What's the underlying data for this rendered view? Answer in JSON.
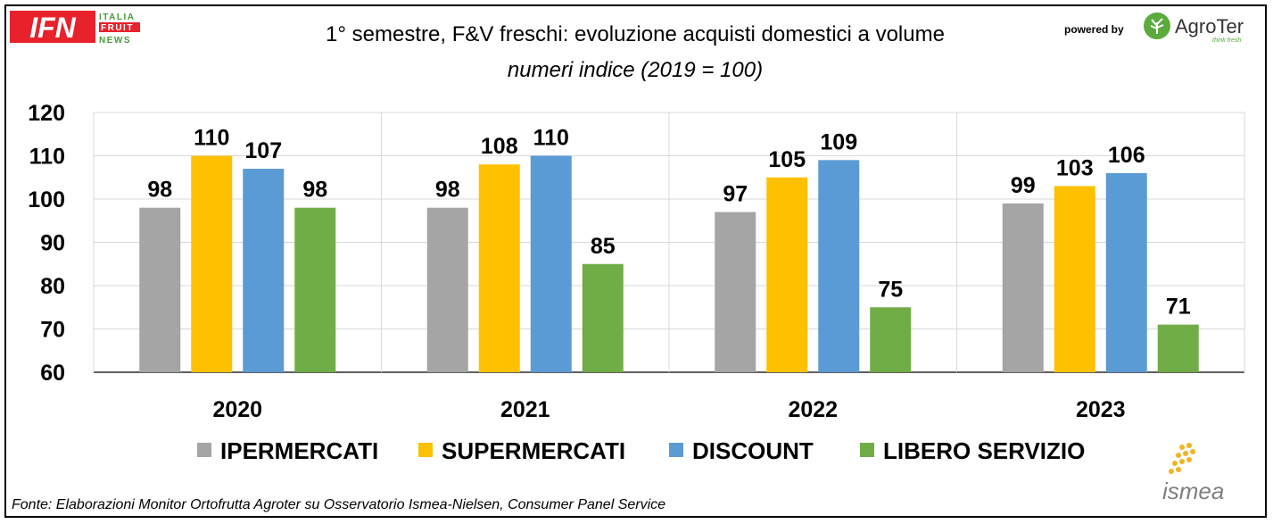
{
  "header": {
    "title": "1° semestre, F&V freschi: evoluzione acquisti domestici a volume",
    "subtitle": "numeri indice (2019 = 100)",
    "logo_left": {
      "letters": "IFN",
      "line1": "ITALIA",
      "line2": "FRUIT",
      "line3": "NEWS"
    },
    "powered_by": "powered by",
    "logo_right": {
      "name": "AgroTer",
      "tagline": "think fresh"
    }
  },
  "footer": {
    "source": "Fonte: Elaborazioni Monitor Ortofrutta Agroter su Osservatorio Ismea-Nielsen, Consumer Panel Service",
    "ismea_logo": "ismea"
  },
  "colors": {
    "ipermercati": "#A5A5A5",
    "supermercati": "#FFC000",
    "discount": "#5B9BD5",
    "libero_servizio": "#70AD47",
    "grid": "#D9D9D9",
    "ifn_red": "#E8212B",
    "ifn_green": "#4A9A3C",
    "agroter_green": "#5BAA3C"
  },
  "chart_data": {
    "type": "bar",
    "categories": [
      "2020",
      "2021",
      "2022",
      "2023"
    ],
    "series": [
      {
        "name": "IPERMERCATI",
        "values": [
          98,
          98,
          97,
          99
        ],
        "labels": [
          "98",
          "98",
          "97",
          "99"
        ],
        "color": "#A5A5A5"
      },
      {
        "name": "SUPERMERCATI",
        "values": [
          110,
          108,
          105,
          103
        ],
        "labels": [
          "110",
          "108",
          "105",
          "103"
        ],
        "color": "#FFC000"
      },
      {
        "name": "DISCOUNT",
        "values": [
          107,
          110,
          109,
          106
        ],
        "labels": [
          "107",
          "110",
          "109",
          "106"
        ],
        "color": "#5B9BD5"
      },
      {
        "name": "LIBERO SERVIZIO",
        "values": [
          98,
          85,
          75,
          71
        ],
        "labels": [
          "98",
          "85",
          "75",
          "71"
        ],
        "color": "#70AD47"
      }
    ],
    "ylim": [
      60,
      120
    ],
    "yticks": [
      60,
      70,
      80,
      90,
      100,
      110,
      120
    ],
    "grid": true,
    "legend_position": "bottom"
  }
}
